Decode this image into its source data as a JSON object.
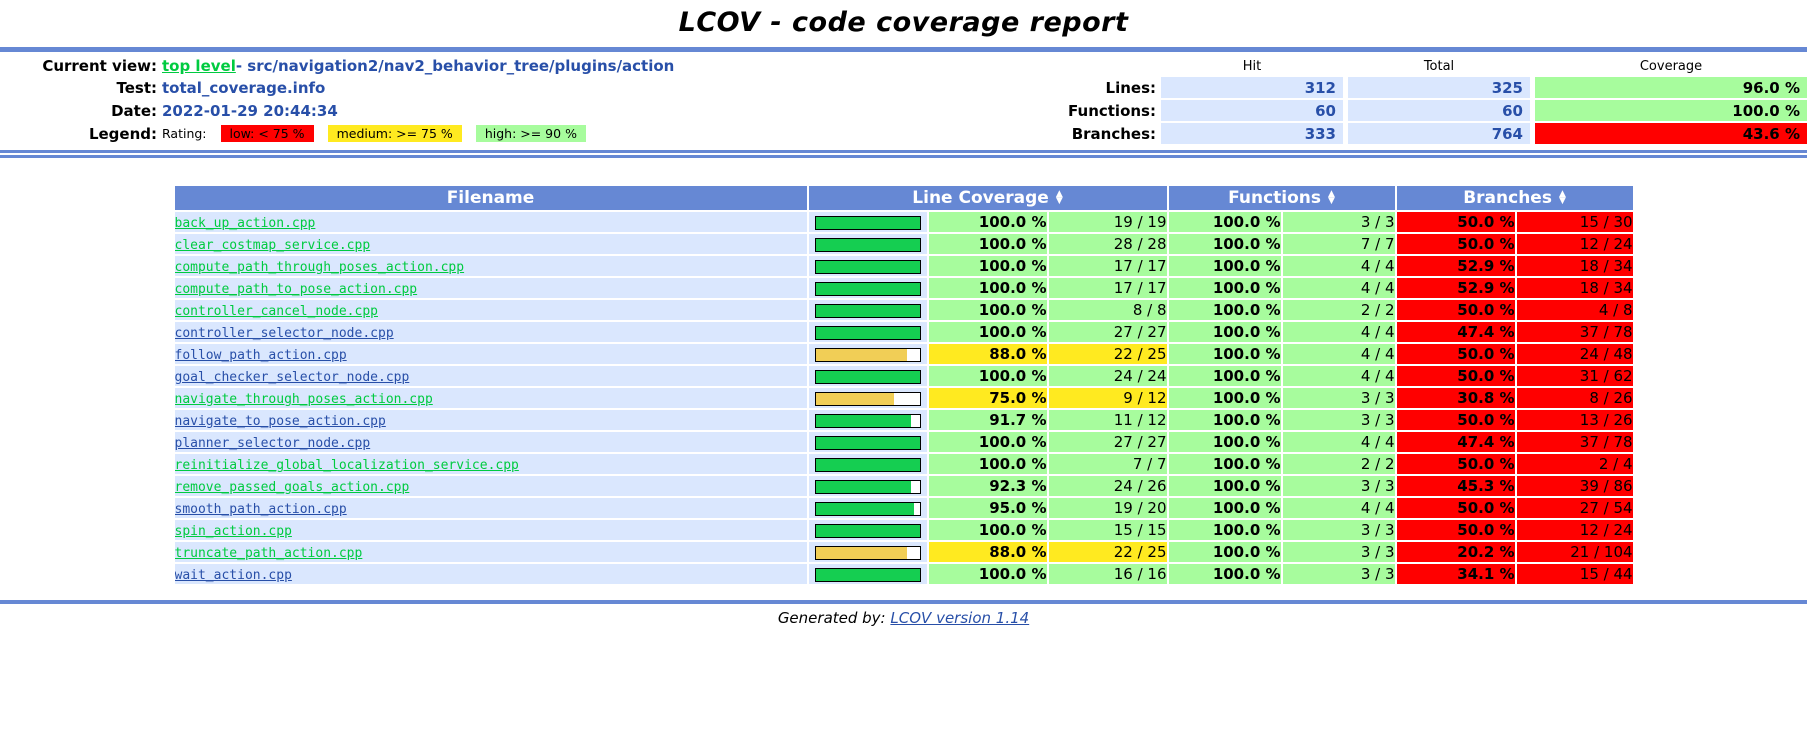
{
  "title": "LCOV - code coverage report",
  "header": {
    "current_view_label": "Current view:",
    "current_view_link": "top level",
    "current_view_suffix": " - src/navigation2/nav2_behavior_tree/plugins/action",
    "test_label": "Test:",
    "test_value": "total_coverage.info",
    "date_label": "Date:",
    "date_value": "2022-01-29 20:44:34",
    "legend_label": "Legend:",
    "legend_rating_label": "Rating:",
    "legend_items": [
      {
        "name": "low",
        "label": "low: < 75 %"
      },
      {
        "name": "medium",
        "label": "medium: >= 75 %"
      },
      {
        "name": "high",
        "label": "high: >= 90 %"
      }
    ],
    "stats": {
      "col_headers": [
        "Hit",
        "Total",
        "Coverage"
      ],
      "rows": [
        {
          "label": "Lines:",
          "hit": "312",
          "total": "325",
          "coverage": "96.0 %",
          "rating": "high"
        },
        {
          "label": "Functions:",
          "hit": "60",
          "total": "60",
          "coverage": "100.0 %",
          "rating": "high"
        },
        {
          "label": "Branches:",
          "hit": "333",
          "total": "764",
          "coverage": "43.6 %",
          "rating": "low"
        }
      ]
    }
  },
  "table": {
    "headers": {
      "filename": "Filename",
      "line": "Line Coverage",
      "functions": "Functions",
      "branches": "Branches"
    },
    "rows": [
      {
        "file": "back_up_action.cpp",
        "visited": true,
        "line_pct": "100.0 %",
        "line_pct_num": 100,
        "line_ratio": "19 / 19",
        "line_rating": "high",
        "func_pct": "100.0 %",
        "func_ratio": "3 / 3",
        "func_rating": "high",
        "branch_pct": "50.0 %",
        "branch_ratio": "15 / 30",
        "branch_rating": "low"
      },
      {
        "file": "clear_costmap_service.cpp",
        "visited": true,
        "line_pct": "100.0 %",
        "line_pct_num": 100,
        "line_ratio": "28 / 28",
        "line_rating": "high",
        "func_pct": "100.0 %",
        "func_ratio": "7 / 7",
        "func_rating": "high",
        "branch_pct": "50.0 %",
        "branch_ratio": "12 / 24",
        "branch_rating": "low"
      },
      {
        "file": "compute_path_through_poses_action.cpp",
        "visited": true,
        "line_pct": "100.0 %",
        "line_pct_num": 100,
        "line_ratio": "17 / 17",
        "line_rating": "high",
        "func_pct": "100.0 %",
        "func_ratio": "4 / 4",
        "func_rating": "high",
        "branch_pct": "52.9 %",
        "branch_ratio": "18 / 34",
        "branch_rating": "low"
      },
      {
        "file": "compute_path_to_pose_action.cpp",
        "visited": true,
        "line_pct": "100.0 %",
        "line_pct_num": 100,
        "line_ratio": "17 / 17",
        "line_rating": "high",
        "func_pct": "100.0 %",
        "func_ratio": "4 / 4",
        "func_rating": "high",
        "branch_pct": "52.9 %",
        "branch_ratio": "18 / 34",
        "branch_rating": "low"
      },
      {
        "file": "controller_cancel_node.cpp",
        "visited": true,
        "line_pct": "100.0 %",
        "line_pct_num": 100,
        "line_ratio": "8 / 8",
        "line_rating": "high",
        "func_pct": "100.0 %",
        "func_ratio": "2 / 2",
        "func_rating": "high",
        "branch_pct": "50.0 %",
        "branch_ratio": "4 / 8",
        "branch_rating": "low"
      },
      {
        "file": "controller_selector_node.cpp",
        "visited": false,
        "line_pct": "100.0 %",
        "line_pct_num": 100,
        "line_ratio": "27 / 27",
        "line_rating": "high",
        "func_pct": "100.0 %",
        "func_ratio": "4 / 4",
        "func_rating": "high",
        "branch_pct": "47.4 %",
        "branch_ratio": "37 / 78",
        "branch_rating": "low"
      },
      {
        "file": "follow_path_action.cpp",
        "visited": false,
        "line_pct": "88.0 %",
        "line_pct_num": 88,
        "line_ratio": "22 / 25",
        "line_rating": "medium",
        "func_pct": "100.0 %",
        "func_ratio": "4 / 4",
        "func_rating": "high",
        "branch_pct": "50.0 %",
        "branch_ratio": "24 / 48",
        "branch_rating": "low"
      },
      {
        "file": "goal_checker_selector_node.cpp",
        "visited": false,
        "line_pct": "100.0 %",
        "line_pct_num": 100,
        "line_ratio": "24 / 24",
        "line_rating": "high",
        "func_pct": "100.0 %",
        "func_ratio": "4 / 4",
        "func_rating": "high",
        "branch_pct": "50.0 %",
        "branch_ratio": "31 / 62",
        "branch_rating": "low"
      },
      {
        "file": "navigate_through_poses_action.cpp",
        "visited": true,
        "line_pct": "75.0 %",
        "line_pct_num": 75,
        "line_ratio": "9 / 12",
        "line_rating": "medium",
        "func_pct": "100.0 %",
        "func_ratio": "3 / 3",
        "func_rating": "high",
        "branch_pct": "30.8 %",
        "branch_ratio": "8 / 26",
        "branch_rating": "low"
      },
      {
        "file": "navigate_to_pose_action.cpp",
        "visited": false,
        "line_pct": "91.7 %",
        "line_pct_num": 91.7,
        "line_ratio": "11 / 12",
        "line_rating": "high",
        "func_pct": "100.0 %",
        "func_ratio": "3 / 3",
        "func_rating": "high",
        "branch_pct": "50.0 %",
        "branch_ratio": "13 / 26",
        "branch_rating": "low"
      },
      {
        "file": "planner_selector_node.cpp",
        "visited": false,
        "line_pct": "100.0 %",
        "line_pct_num": 100,
        "line_ratio": "27 / 27",
        "line_rating": "high",
        "func_pct": "100.0 %",
        "func_ratio": "4 / 4",
        "func_rating": "high",
        "branch_pct": "47.4 %",
        "branch_ratio": "37 / 78",
        "branch_rating": "low"
      },
      {
        "file": "reinitialize_global_localization_service.cpp",
        "visited": true,
        "line_pct": "100.0 %",
        "line_pct_num": 100,
        "line_ratio": "7 / 7",
        "line_rating": "high",
        "func_pct": "100.0 %",
        "func_ratio": "2 / 2",
        "func_rating": "high",
        "branch_pct": "50.0 %",
        "branch_ratio": "2 / 4",
        "branch_rating": "low"
      },
      {
        "file": "remove_passed_goals_action.cpp",
        "visited": true,
        "line_pct": "92.3 %",
        "line_pct_num": 92.3,
        "line_ratio": "24 / 26",
        "line_rating": "high",
        "func_pct": "100.0 %",
        "func_ratio": "3 / 3",
        "func_rating": "high",
        "branch_pct": "45.3 %",
        "branch_ratio": "39 / 86",
        "branch_rating": "low"
      },
      {
        "file": "smooth_path_action.cpp",
        "visited": false,
        "line_pct": "95.0 %",
        "line_pct_num": 95,
        "line_ratio": "19 / 20",
        "line_rating": "high",
        "func_pct": "100.0 %",
        "func_ratio": "4 / 4",
        "func_rating": "high",
        "branch_pct": "50.0 %",
        "branch_ratio": "27 / 54",
        "branch_rating": "low"
      },
      {
        "file": "spin_action.cpp",
        "visited": true,
        "line_pct": "100.0 %",
        "line_pct_num": 100,
        "line_ratio": "15 / 15",
        "line_rating": "high",
        "func_pct": "100.0 %",
        "func_ratio": "3 / 3",
        "func_rating": "high",
        "branch_pct": "50.0 %",
        "branch_ratio": "12 / 24",
        "branch_rating": "low"
      },
      {
        "file": "truncate_path_action.cpp",
        "visited": true,
        "line_pct": "88.0 %",
        "line_pct_num": 88,
        "line_ratio": "22 / 25",
        "line_rating": "medium",
        "func_pct": "100.0 %",
        "func_ratio": "3 / 3",
        "func_rating": "high",
        "branch_pct": "20.2 %",
        "branch_ratio": "21 / 104",
        "branch_rating": "low"
      },
      {
        "file": "wait_action.cpp",
        "visited": false,
        "line_pct": "100.0 %",
        "line_pct_num": 100,
        "line_ratio": "16 / 16",
        "line_rating": "high",
        "func_pct": "100.0 %",
        "func_ratio": "3 / 3",
        "func_rating": "high",
        "branch_pct": "34.1 %",
        "branch_ratio": "15 / 44",
        "branch_rating": "low"
      }
    ]
  },
  "footer": {
    "generated_by": "Generated by:",
    "link": "LCOV version 1.14"
  },
  "colors": {
    "accent_blue": "#6688D4",
    "row_bg": "#DAE7FE",
    "high": "#A7FC9D",
    "medium": "#FFEA20",
    "low": "#FF0000",
    "bar_high": "#15CE51",
    "bar_medium": "#F1CE56",
    "link_blue": "#284FA8",
    "link_visited": "#00CB40"
  }
}
